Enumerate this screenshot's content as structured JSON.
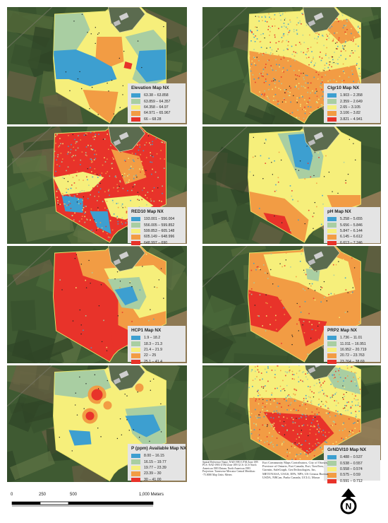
{
  "maps": [
    {
      "id": "elevation",
      "title": "Elevation Map NX",
      "palette": [
        "#3d9fd0",
        "#a9cea2",
        "#f6ef7b",
        "#f29c44",
        "#e8332a"
      ],
      "labels": [
        "63.38 – 63.858",
        "63.859 – 64.357",
        "64.358 – 64.97",
        "64.971 – 65.967",
        "66 – 68.28"
      ]
    },
    {
      "id": "clgir10",
      "title": "Clgr10 Map NX",
      "palette": [
        "#3d9fd0",
        "#a9cea2",
        "#f6ef7b",
        "#f29c44",
        "#e8332a"
      ],
      "labels": [
        "1.903 – 2.358",
        "2.359 – 2.649",
        "2.65 – 3.105",
        "3.106 – 3.82",
        "3.821 – 4.941"
      ]
    },
    {
      "id": "red10",
      "title": "RED10 Map NX",
      "palette": [
        "#3d9fd0",
        "#a9cea2",
        "#f6ef7b",
        "#f29c44",
        "#e8332a"
      ],
      "labels": [
        "193.001 – 556.004",
        "556.005 – 599.852",
        "599.853 – 605.148",
        "605.149 – 648.996",
        "648.997 – 690"
      ]
    },
    {
      "id": "ph",
      "title": "pH Map NX",
      "palette": [
        "#3d9fd0",
        "#a9cea2",
        "#f6ef7b",
        "#f29c44",
        "#e8332a"
      ],
      "labels": [
        "5.258 – 5.655",
        "5.656 – 5.846",
        "5.847 – 6.144",
        "6.145 – 6.612",
        "6.613 – 7.246"
      ]
    },
    {
      "id": "hcp1",
      "title": "HCP1 Map NX",
      "palette": [
        "#3d9fd0",
        "#a9cea2",
        "#f6ef7b",
        "#f29c44",
        "#e8332a"
      ],
      "labels": [
        "1.9 – 18.2",
        "18.3 – 21.3",
        "21.4 – 21.9",
        "22 – 25",
        "25.1 – 41.4"
      ]
    },
    {
      "id": "prp2",
      "title": "PRP2 Map NX",
      "palette": [
        "#3d9fd0",
        "#a9cea2",
        "#f6ef7b",
        "#f29c44",
        "#e8332a"
      ],
      "labels": [
        "1.736 – 11.01",
        "11.011 – 16.951",
        "16.952 – 20.719",
        "20.72 – 23.763",
        "23.764 – 38.69"
      ]
    },
    {
      "id": "p_avail",
      "title": "P (ppm) Available Map NX",
      "palette": [
        "#3d9fd0",
        "#a9cea2",
        "#f6ef7b",
        "#f29c44",
        "#e8332a"
      ],
      "labels": [
        "8.00 – 16.15",
        "16.15 – 19.77",
        "19.77 – 23.39",
        "23.39 – 30",
        "30 – 41.00"
      ]
    },
    {
      "id": "grndvi10",
      "title": "GrNDVI10 Map NX",
      "palette": [
        "#3d9fd0",
        "#a9cea2",
        "#f6ef7b",
        "#f29c44",
        "#e8332a"
      ],
      "labels": [
        "0.488 – 0.537",
        "0.538 – 0.557",
        "0.558 – 0.574",
        "0.575 – 0.59",
        "0.591 – 0.712"
      ]
    }
  ],
  "scale": {
    "labels": [
      "0",
      "250",
      "500",
      "1,000 Meters"
    ],
    "unit": "Meters"
  },
  "metadata": {
    "left": "Spatial Reference Name: NAD 1983 UTM Zone 18N PCS: NAD 1983 UTM Zone 18N GCS: GCS North American 1983 Datum: North American 1983 Projection: Transverse Mercator Central Meridian: -75.0000 Map Units: Meters",
    "right": "Esri Community Maps Contributors, City of Ottawa, Province of Ontario, Esri Canada, Esri, TomTom, Garmin, SafeGraph, GeoTechnologies, Inc, METI/NASA, USGS, EPA, NPS, US Census Bureau, USDA, NRCan, Parks Canada, UCLG, Maxar"
  },
  "north_arrow": {
    "letter": "N",
    "icon": "north-arrow-icon"
  }
}
